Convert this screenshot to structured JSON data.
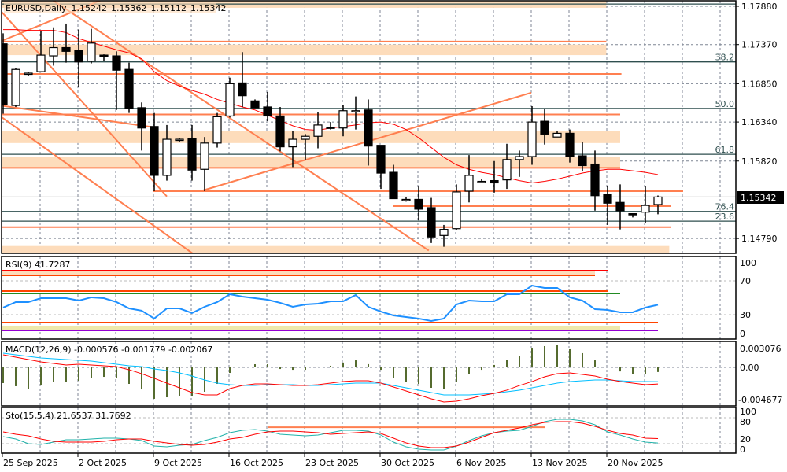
{
  "header": {
    "symbol_tf": "EURUSD,Daily",
    "open": "1.15242",
    "high": "1.15362",
    "low": "1.15112",
    "close": "1.15342"
  },
  "colors": {
    "bull": "#ffffff",
    "bear": "#000000",
    "ma": "#ff0000",
    "drawing": "#ff7f50",
    "zone": "#fddcbb",
    "fib": "#2f4f4f",
    "rsi": "#1e90ff",
    "macd_hist": "#556b2f",
    "macd_main": "#ff0000",
    "macd_signal": "#00bfff",
    "sto_main": "#20b2aa",
    "sto_signal": "#ff0000"
  },
  "price_axis": {
    "ticks": [
      "1.17880",
      "1.17370",
      "1.16850",
      "1.16340",
      "1.15820",
      "1.14790"
    ],
    "tick_values": [
      1.1788,
      1.1737,
      1.1685,
      1.1634,
      1.1582,
      1.1479
    ],
    "current_price": "1.15342",
    "current_value": 1.15342
  },
  "date_axis": {
    "labels": [
      "25 Sep 2025",
      "2 Oct 2025",
      "9 Oct 2025",
      "16 Oct 2025",
      "23 Oct 2025",
      "30 Oct 2025",
      "6 Nov 2025",
      "13 Nov 2025",
      "20 Nov 2025"
    ],
    "label_bars": [
      0,
      6,
      12,
      18,
      24,
      30,
      36,
      42,
      48
    ]
  },
  "candles": [
    [
      1.1738,
      1.1752,
      1.1645,
      1.1657
    ],
    [
      1.1656,
      1.1706,
      1.1654,
      1.1704
    ],
    [
      1.1698,
      1.1701,
      1.1695,
      1.1699
    ],
    [
      1.1701,
      1.1755,
      1.17,
      1.1723
    ],
    [
      1.1722,
      1.176,
      1.1709,
      1.1733
    ],
    [
      1.1733,
      1.1765,
      1.1713,
      1.1728
    ],
    [
      1.1729,
      1.1757,
      1.1681,
      1.1714
    ],
    [
      1.1715,
      1.1758,
      1.1712,
      1.1739
    ],
    [
      1.1723,
      1.1724,
      1.1715,
      1.1722
    ],
    [
      1.1722,
      1.1728,
      1.165,
      1.1703
    ],
    [
      1.1704,
      1.1713,
      1.1646,
      1.1652
    ],
    [
      1.1653,
      1.166,
      1.1596,
      1.1626
    ],
    [
      1.1628,
      1.1646,
      1.1542,
      1.1563
    ],
    [
      1.1563,
      1.163,
      1.1556,
      1.1611
    ],
    [
      1.161,
      1.1613,
      1.1607,
      1.1611
    ],
    [
      1.1612,
      1.163,
      1.1556,
      1.157
    ],
    [
      1.1571,
      1.1614,
      1.1542,
      1.1606
    ],
    [
      1.1606,
      1.1646,
      1.16,
      1.1641
    ],
    [
      1.1642,
      1.1693,
      1.164,
      1.1685
    ],
    [
      1.1686,
      1.1727,
      1.1654,
      1.1669
    ],
    [
      1.1662,
      1.1664,
      1.1653,
      1.1653
    ],
    [
      1.1654,
      1.1674,
      1.1635,
      1.1642
    ],
    [
      1.1642,
      1.1654,
      1.1595,
      1.1601
    ],
    [
      1.1601,
      1.1622,
      1.1574,
      1.1611
    ],
    [
      1.1611,
      1.1618,
      1.1584,
      1.1615
    ],
    [
      1.1615,
      1.1647,
      1.1599,
      1.163
    ],
    [
      1.1627,
      1.1634,
      1.1624,
      1.1626
    ],
    [
      1.1626,
      1.1657,
      1.1615,
      1.1649
    ],
    [
      1.1649,
      1.1668,
      1.1624,
      1.1649
    ],
    [
      1.165,
      1.1664,
      1.1576,
      1.1602
    ],
    [
      1.1603,
      1.1603,
      1.1545,
      1.1566
    ],
    [
      1.1567,
      1.1577,
      1.1532,
      1.1532
    ],
    [
      1.1531,
      1.1534,
      1.1528,
      1.1531
    ],
    [
      1.1531,
      1.1548,
      1.1503,
      1.1518
    ],
    [
      1.152,
      1.1533,
      1.1473,
      1.1481
    ],
    [
      1.1483,
      1.1497,
      1.1468,
      1.1491
    ],
    [
      1.1492,
      1.1551,
      1.149,
      1.1541
    ],
    [
      1.1542,
      1.159,
      1.1527,
      1.1563
    ],
    [
      1.1555,
      1.1558,
      1.1553,
      1.1555
    ],
    [
      1.1556,
      1.1582,
      1.154,
      1.1553
    ],
    [
      1.1557,
      1.1605,
      1.1545,
      1.1584
    ],
    [
      1.1584,
      1.1596,
      1.1561,
      1.1588
    ],
    [
      1.1588,
      1.1655,
      1.1577,
      1.1634
    ],
    [
      1.1635,
      1.1651,
      1.1604,
      1.1618
    ],
    [
      1.1614,
      1.1622,
      1.1614,
      1.1619
    ],
    [
      1.1619,
      1.1624,
      1.158,
      1.1588
    ],
    [
      1.1589,
      1.1607,
      1.1569,
      1.1576
    ],
    [
      1.1578,
      1.1596,
      1.1516,
      1.1536
    ],
    [
      1.1538,
      1.1549,
      1.1497,
      1.1526
    ],
    [
      1.1527,
      1.1551,
      1.1491,
      1.1516
    ],
    [
      1.1512,
      1.1512,
      1.1507,
      1.1511
    ],
    [
      1.1514,
      1.1549,
      1.15,
      1.1523
    ],
    [
      1.15242,
      1.15362,
      1.15112,
      1.15342
    ]
  ],
  "ma": [
    1.1757,
    1.1757,
    1.1756,
    1.1756,
    1.1756,
    1.1753,
    1.1745,
    1.174,
    1.1735,
    1.173,
    1.1726,
    1.1718,
    1.1701,
    1.1689,
    1.1682,
    1.1676,
    1.1671,
    1.1664,
    1.1659,
    1.1654,
    1.165,
    1.1643,
    1.1636,
    1.1629,
    1.1624,
    1.1623,
    1.1626,
    1.1628,
    1.163,
    1.1633,
    1.1634,
    1.1631,
    1.1624,
    1.1613,
    1.16,
    1.1587,
    1.1577,
    1.1571,
    1.1567,
    1.1564,
    1.156,
    1.1556,
    1.1553,
    1.1555,
    1.1558,
    1.1562,
    1.1566,
    1.1569,
    1.1571,
    1.1571,
    1.1569,
    1.1567,
    1.1564
  ],
  "drawings": {
    "hlines": [
      {
        "price": 1.1741,
        "from_bar": -1,
        "to_bar": 47.9
      },
      {
        "price": 1.1698,
        "from_bar": -1,
        "to_bar": 49.1
      },
      {
        "price": 1.1644,
        "from_bar": -1,
        "to_bar": 49
      },
      {
        "price": 1.1573,
        "from_bar": -1,
        "to_bar": 49
      },
      {
        "price": 1.1542,
        "from_bar": 11.9,
        "to_bar": 54
      },
      {
        "price": 1.1522,
        "from_bar": 31,
        "to_bar": 53
      },
      {
        "price": 1.1494,
        "from_bar": -1,
        "to_bar": 53
      }
    ],
    "zones": [
      {
        "top": 1.1796,
        "bottom": 1.1786,
        "from_bar": -1,
        "to_bar": 47.9
      },
      {
        "top": 1.1737,
        "bottom": 1.1723,
        "from_bar": -1,
        "to_bar": 47.9
      },
      {
        "top": 1.1622,
        "bottom": 1.1606,
        "from_bar": -1,
        "to_bar": 49
      },
      {
        "top": 1.1587,
        "bottom": 1.1573,
        "from_bar": -1,
        "to_bar": 49
      },
      {
        "top": 1.1469,
        "bottom": 1.1459,
        "from_bar": -1,
        "to_bar": 52.9
      }
    ],
    "trendlines": [
      {
        "bar1": -0.25,
        "p1": 1.1783,
        "bar2": 13,
        "p2": 1.1535
      },
      {
        "bar1": 3.94,
        "p1": 1.1796,
        "bar2": 33.8,
        "p2": 1.1463
      },
      {
        "bar1": -0.25,
        "p1": 1.1642,
        "bar2": 15.06,
        "p2": 1.1459
      },
      {
        "bar1": -0.25,
        "p1": 1.1741,
        "bar2": 7.75,
        "p2": 1.1796
      },
      {
        "bar1": -0.25,
        "p1": 1.1656,
        "bar2": 11.94,
        "p2": 1.1627
      },
      {
        "bar1": 15.875,
        "p1": 1.1543,
        "bar2": 41.94,
        "p2": 1.1673
      }
    ],
    "fib_levels": [
      {
        "price": 1.1791,
        "label": ""
      },
      {
        "price": 1.1714,
        "label": "38.2"
      },
      {
        "price": 1.1652,
        "label": "50.0"
      },
      {
        "price": 1.1591,
        "label": "61.8"
      },
      {
        "price": 1.1515,
        "label": "76.4"
      },
      {
        "price": 1.1502,
        "label": "23.6"
      }
    ]
  },
  "rsi": {
    "title": "RSI(9) 41.7287",
    "ticks": [
      "100",
      "70",
      "30",
      "0"
    ],
    "tick_values": [
      100,
      70,
      30,
      0
    ],
    "values": [
      38.4,
      44.9,
      44.9,
      49.5,
      49.5,
      49.5,
      46.7,
      50.5,
      49.5,
      44.9,
      37.4,
      34.7,
      25.4,
      37.4,
      37.4,
      31.9,
      39.3,
      44.9,
      54.2,
      51.4,
      49.5,
      47.7,
      44.0,
      39.3,
      42.1,
      43.0,
      45.8,
      45.8,
      53.3,
      39.3,
      33.7,
      29.1,
      27.2,
      25.4,
      22.6,
      25.4,
      42.1,
      46.7,
      45.8,
      45.8,
      54.2,
      54.2,
      64.4,
      61.6,
      61.6,
      50.5,
      46.7,
      36.5,
      35.6,
      32.8,
      32.8,
      38.4,
      41.7287
    ],
    "levels": [
      {
        "value": 82.1,
        "to_bar": 48,
        "color": "#ff0000"
      },
      {
        "value": 76.5,
        "to_bar": 47,
        "color": "#ff4500"
      },
      {
        "value": 57.9,
        "to_bar": 48,
        "color": "#ff4500"
      },
      {
        "value": 55.1,
        "to_bar": 49,
        "color": "#228b22"
      },
      {
        "value": 20.7,
        "to_bar": 52,
        "color": "#ff4500"
      },
      {
        "value": 11.4,
        "to_bar": 52,
        "color": "#9400d3"
      }
    ],
    "bands": [
      {
        "top": 82.1,
        "bottom": 76.5,
        "to_bar": 47,
        "color": "#fddcbb"
      },
      {
        "top": 17.0,
        "bottom": 12.3,
        "to_bar": 49,
        "color": "#eee8aa"
      }
    ]
  },
  "macd": {
    "title": "MACD(12,26,9) -0.000576 -0.001779 -0.002067",
    "ticks": [
      "0.003076",
      "0.00",
      "-0.004677"
    ],
    "tick_values": [
      0.003076,
      0,
      -0.004677
    ],
    "hist": [
      -0.00196,
      -0.00235,
      -0.00265,
      -0.00226,
      -0.00186,
      -0.00177,
      -0.00167,
      -0.00128,
      -0.00118,
      -0.00137,
      -0.00206,
      -0.00275,
      -0.00392,
      -0.00373,
      -0.00353,
      -0.00363,
      -0.00304,
      -0.00206,
      -0.00069,
      0.0001,
      0.00039,
      0.00039,
      -0.0002,
      -0.0003,
      -0.0003,
      0.0001,
      0.0002,
      0.0006,
      0.00088,
      0.0004,
      -0.0003,
      -0.00128,
      -0.00177,
      -0.00206,
      -0.00255,
      -0.00265,
      -0.00177,
      -0.00088,
      -0.0003,
      0.0003,
      0.00098,
      0.00147,
      0.00235,
      0.00265,
      0.00275,
      0.00226,
      0.00177,
      0.00088,
      0.0001,
      -0.0005,
      -0.00088,
      -0.00088,
      -0.000576
    ],
    "main": [
      0.00157,
      0.00128,
      0.00098,
      0.00069,
      0.00049,
      0.00029,
      0.00039,
      0.00029,
      0.0002,
      0.0001,
      -0.00029,
      -0.00079,
      -0.00137,
      -0.00196,
      -0.00255,
      -0.00314,
      -0.00343,
      -0.00343,
      -0.00265,
      -0.00226,
      -0.00206,
      -0.00206,
      -0.00216,
      -0.00226,
      -0.00226,
      -0.00216,
      -0.00196,
      -0.00177,
      -0.00167,
      -0.00167,
      -0.00196,
      -0.00245,
      -0.00294,
      -0.00343,
      -0.00392,
      -0.00432,
      -0.00422,
      -0.00392,
      -0.00353,
      -0.00324,
      -0.00284,
      -0.00226,
      -0.00177,
      -0.00118,
      -0.00079,
      -0.00069,
      -0.00088,
      -0.00108,
      -0.00147,
      -0.00177,
      -0.00196,
      -0.00216,
      -0.002067
    ],
    "signal": [
      0.00177,
      0.00157,
      0.00137,
      0.00118,
      0.00108,
      0.00098,
      0.00088,
      0.00078,
      0.00059,
      0.00039,
      0.0002,
      0.0001,
      -0.0002,
      -0.00039,
      -0.00069,
      -0.00108,
      -0.00157,
      -0.00196,
      -0.00216,
      -0.00226,
      -0.00226,
      -0.00216,
      -0.00216,
      -0.00216,
      -0.00226,
      -0.00226,
      -0.00216,
      -0.00206,
      -0.00196,
      -0.00196,
      -0.00196,
      -0.00226,
      -0.00255,
      -0.00284,
      -0.00314,
      -0.00343,
      -0.00343,
      -0.00343,
      -0.00333,
      -0.00324,
      -0.00304,
      -0.00284,
      -0.00255,
      -0.00226,
      -0.00196,
      -0.00177,
      -0.00167,
      -0.00157,
      -0.00157,
      -0.00167,
      -0.00177,
      -0.00177,
      -0.001779
    ]
  },
  "stochastic": {
    "title": "Sto(15,5,4) 21.6537 31.7692",
    "ticks": [
      "100",
      "80",
      "20",
      "0"
    ],
    "main": [
      36.4,
      30.9,
      20,
      18.2,
      23.6,
      29.1,
      29.1,
      30.9,
      32.7,
      32.7,
      30.9,
      27.3,
      14.5,
      12.7,
      16.4,
      18.2,
      27.3,
      34.5,
      45.5,
      50.9,
      52.7,
      49.1,
      41.8,
      40,
      38.2,
      40,
      45.5,
      50.9,
      50.9,
      49.1,
      40,
      23.6,
      12.7,
      7.3,
      5.5,
      5.5,
      14.5,
      27.3,
      38.2,
      45.5,
      49.1,
      50.9,
      60,
      70.9,
      76.4,
      76.4,
      72.7,
      63.6,
      47.3,
      40,
      30.9,
      23.6,
      21.6537
    ],
    "signal": [
      47.3,
      41.8,
      38.2,
      30.9,
      25.5,
      23.6,
      23.6,
      23.6,
      25.5,
      29.1,
      30.9,
      30.9,
      25.5,
      21.8,
      18.2,
      16.4,
      18.2,
      23.6,
      30.9,
      34.5,
      41.8,
      47.3,
      49.1,
      49.1,
      47.3,
      45.5,
      41.8,
      43.6,
      45.5,
      47.3,
      43.6,
      32.7,
      21.8,
      14.5,
      10.9,
      10.9,
      14.5,
      23.6,
      34.5,
      45.5,
      50.9,
      56.4,
      63.6,
      69.1,
      70.9,
      70.9,
      67.3,
      60,
      50.9,
      43.6,
      40,
      32.7,
      31.7692
    ],
    "level": {
      "value": 58,
      "from_bar": 21,
      "to_bar": 43
    }
  }
}
